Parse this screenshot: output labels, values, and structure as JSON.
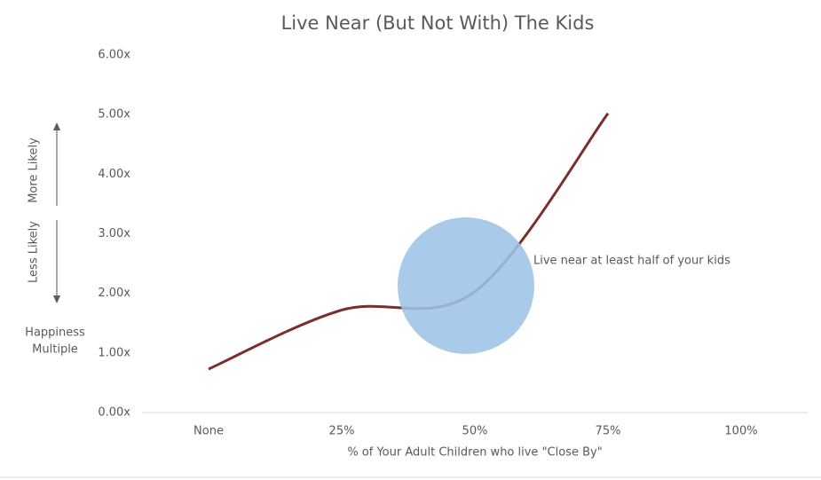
{
  "chart_data": {
    "type": "line",
    "title": "Live Near (But Not With) The Kids",
    "categories": [
      "None",
      "25%",
      "50%",
      "75%",
      "100%"
    ],
    "series": [
      {
        "name": "Happiness Multiple",
        "color": "#7b2e2e",
        "values": [
          0.73,
          1.72,
          2.03,
          5.02,
          null
        ]
      }
    ],
    "ylim": [
      0,
      6
    ],
    "yticks": [
      {
        "value": 0,
        "label": "0.00x"
      },
      {
        "value": 1,
        "label": "1.00x"
      },
      {
        "value": 2,
        "label": "2.00x"
      },
      {
        "value": 3,
        "label": "3.00x"
      },
      {
        "value": 4,
        "label": "4.00x"
      },
      {
        "value": 5,
        "label": "5.00x"
      },
      {
        "value": 6,
        "label": "6.00x"
      }
    ],
    "x_label": "% of Your Adult Children who live \"Close By\"",
    "y_label_lines": [
      "Happiness",
      "Multiple"
    ],
    "direction_labels": {
      "up": "More Likely",
      "down": "Less Likely"
    },
    "annotation": "Live near at least half of your kids",
    "grid": false
  }
}
